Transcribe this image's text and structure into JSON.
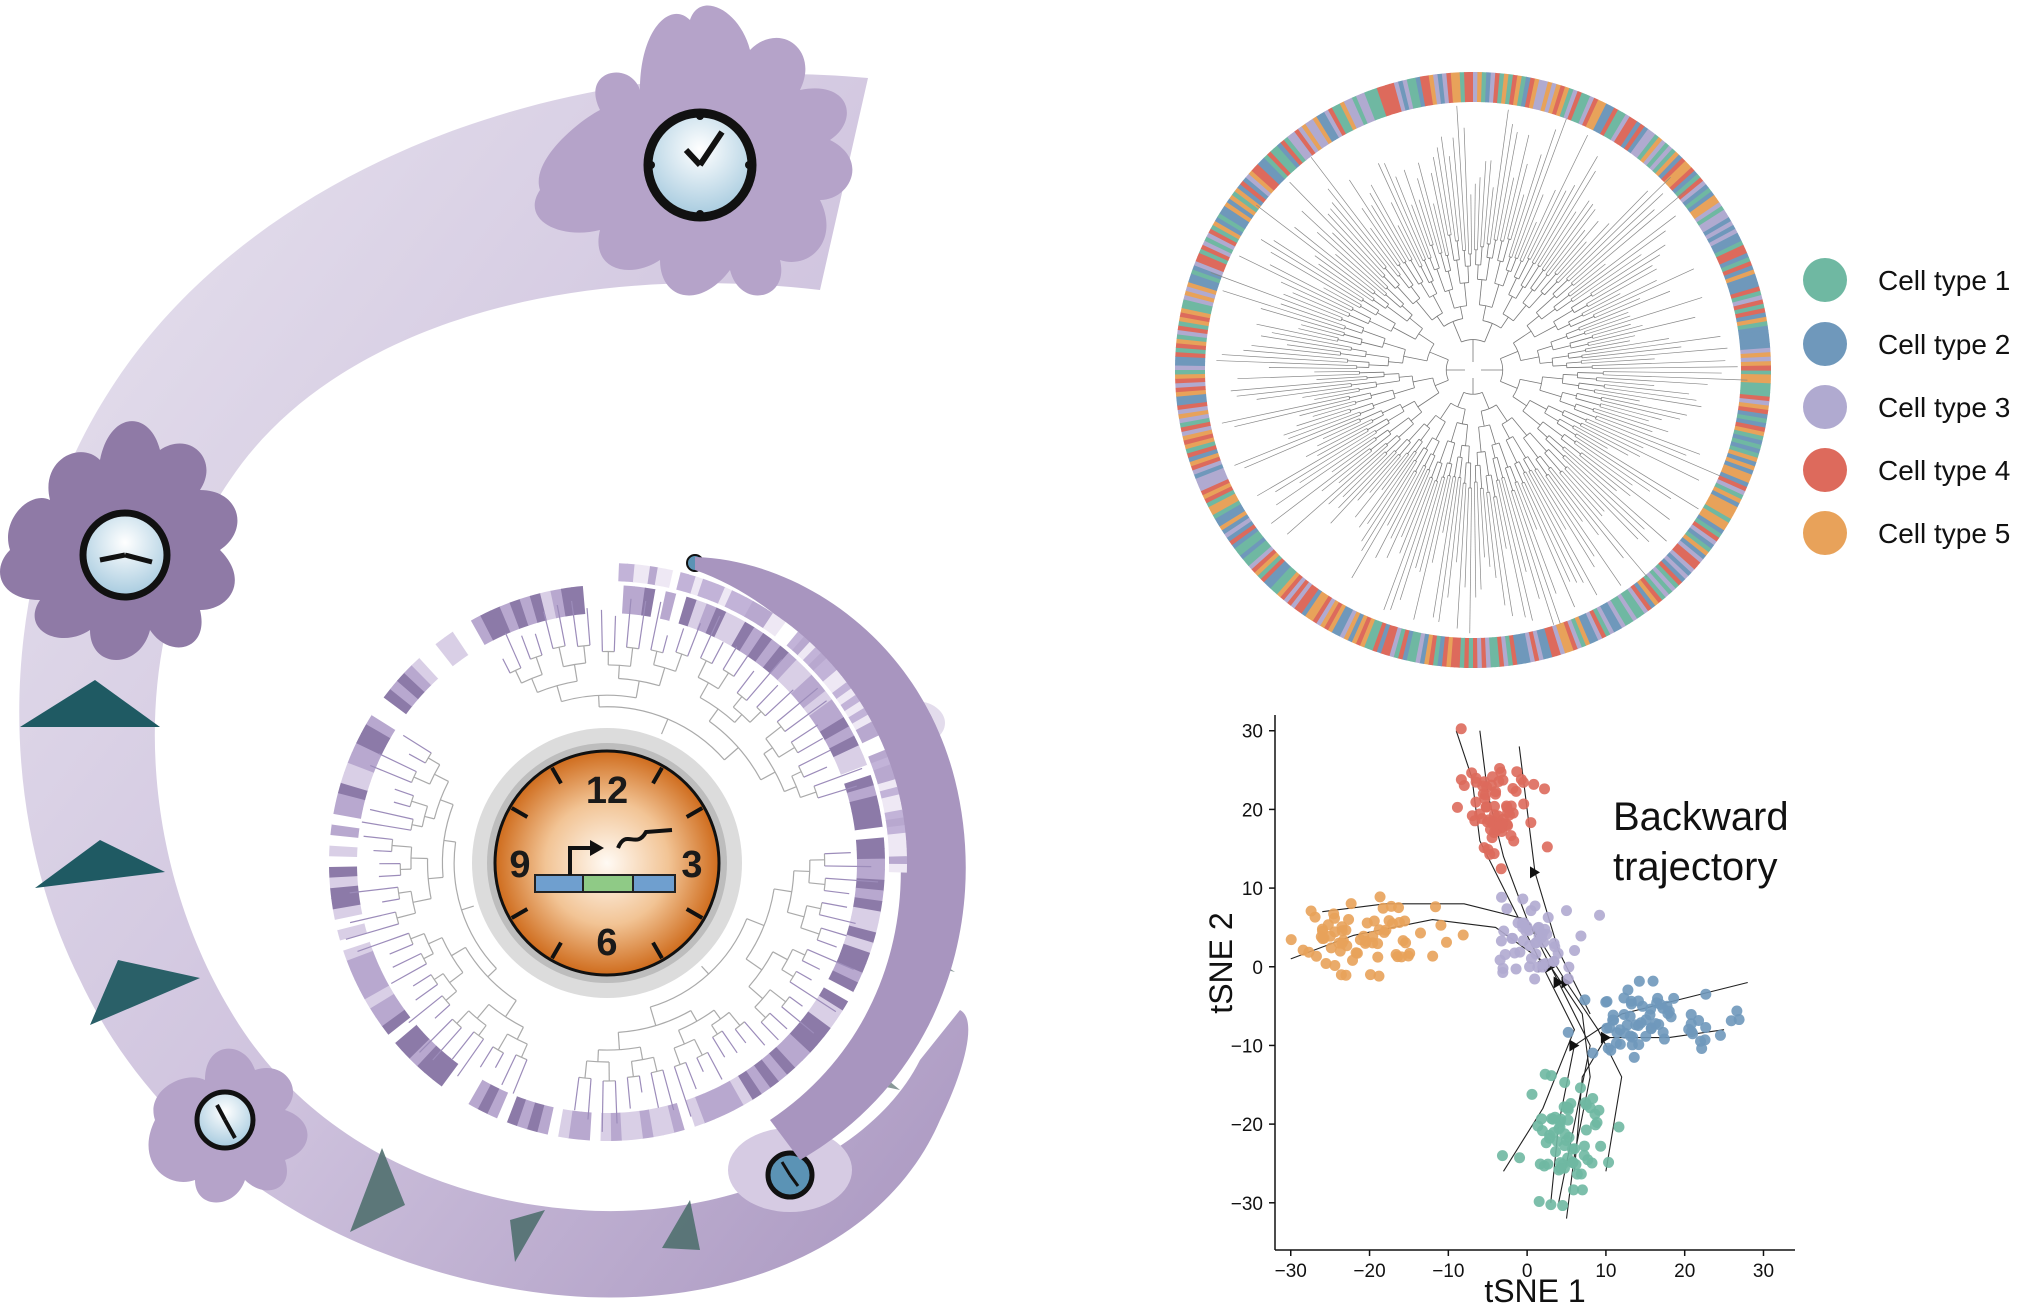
{
  "colors": {
    "spiral_light": "#e8e4ef",
    "spiral_dark": "#a895bf",
    "triangle": "#1f5a63",
    "cell_fill": "#b5a3c9",
    "cell_dark": "#8f7aa6",
    "clock_orange": "#d97a28",
    "ring_dark": "#8c7aa8",
    "ring_light": "#d9cfe6"
  },
  "legend": {
    "items": [
      {
        "label": "Cell type 1",
        "color": "#6fb8a2"
      },
      {
        "label": "Cell type 2",
        "color": "#6f98bb"
      },
      {
        "label": "Cell type 3",
        "color": "#b0aad0"
      },
      {
        "label": "Cell type 4",
        "color": "#dd6a5c"
      },
      {
        "label": "Cell type 5",
        "color": "#e8a25a"
      }
    ]
  },
  "central_clock": {
    "numbers": [
      "12",
      "3",
      "6",
      "9"
    ]
  },
  "chart_data": {
    "type": "scatter",
    "annotation_line1": "Backward",
    "annotation_line2": "trajectory",
    "xlabel": "tSNE 1",
    "ylabel": "tSNE 2",
    "xlim": [
      -32,
      34
    ],
    "ylim": [
      -36,
      32
    ],
    "xticks": [
      -30,
      -20,
      -10,
      0,
      10,
      20,
      30
    ],
    "yticks": [
      30,
      20,
      10,
      0,
      -10,
      -20,
      -30
    ],
    "xtick_labels": [
      "−30",
      "−20",
      "−10",
      "0",
      "10",
      "20",
      "30"
    ],
    "ytick_labels": [
      "30",
      "20",
      "10",
      "0",
      "−10",
      "−20",
      "−30"
    ],
    "series": [
      {
        "cell_type": 1,
        "center": [
          5,
          -22
        ],
        "spread": [
          4,
          7
        ],
        "n": 70
      },
      {
        "cell_type": 2,
        "center": [
          16,
          -7
        ],
        "spread": [
          7,
          4
        ],
        "n": 70
      },
      {
        "cell_type": 3,
        "center": [
          1,
          3
        ],
        "spread": [
          5,
          5
        ],
        "n": 55
      },
      {
        "cell_type": 4,
        "center": [
          -4,
          20
        ],
        "spread": [
          4,
          6
        ],
        "n": 70
      },
      {
        "cell_type": 5,
        "center": [
          -20,
          4
        ],
        "spread": [
          8,
          4
        ],
        "n": 70
      }
    ]
  }
}
